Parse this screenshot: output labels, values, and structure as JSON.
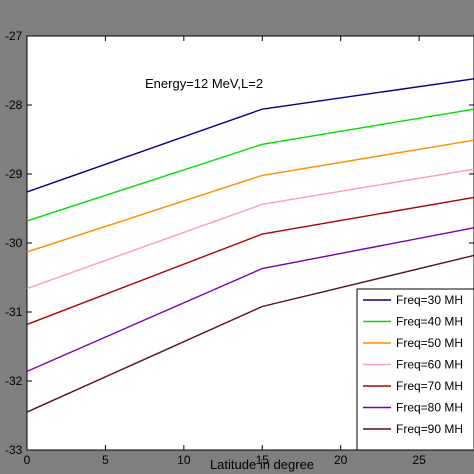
{
  "chart_data": {
    "type": "line",
    "title": "",
    "xlabel": "Latitude in degree",
    "ylabel": "",
    "xlim": [
      0,
      28.5
    ],
    "ylim": [
      -33,
      -27
    ],
    "x_ticks": [
      0,
      5,
      10,
      15,
      20,
      25
    ],
    "y_ticks": [
      {
        "value": -27,
        "label": "-27"
      },
      {
        "value": -28,
        "label": "-28"
      },
      {
        "value": -29,
        "label": "-29"
      },
      {
        "value": -30,
        "label": "-30"
      },
      {
        "value": -31,
        "label": "-31"
      },
      {
        "value": -32,
        "label": "-32"
      },
      {
        "value": -33,
        "label": "-33"
      }
    ],
    "annotation": "Energy=12 MeV,L=2",
    "grid": false,
    "legend_position": "bottom-right",
    "x": [
      0,
      15,
      28.5
    ],
    "series": [
      {
        "name": "Freq=30 MH",
        "color": "#00008b",
        "values": [
          -29.26,
          -28.06,
          -27.62
        ]
      },
      {
        "name": "Freq=40 MH",
        "color": "#00dd00",
        "values": [
          -29.68,
          -28.57,
          -28.06
        ]
      },
      {
        "name": "Freq=50 MH",
        "color": "#ff8c00",
        "values": [
          -30.13,
          -29.02,
          -28.51
        ]
      },
      {
        "name": "Freq=60 MH",
        "color": "#ff99cc",
        "values": [
          -30.66,
          -29.44,
          -28.93
        ]
      },
      {
        "name": "Freq=70 MH",
        "color": "#b00000",
        "values": [
          -31.18,
          -29.87,
          -29.34
        ]
      },
      {
        "name": "Freq=80 MH",
        "color": "#7a00aa",
        "values": [
          -31.86,
          -30.37,
          -29.78
        ]
      },
      {
        "name": "Freq=90 MH",
        "color": "#5a0f12",
        "values": [
          -32.45,
          -30.92,
          -30.18
        ]
      }
    ]
  }
}
